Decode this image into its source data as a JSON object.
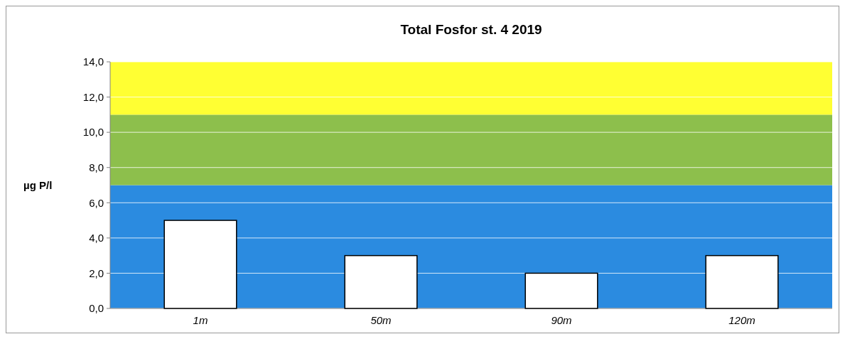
{
  "chart_data": {
    "type": "bar",
    "title": "Total Fosfor st. 4 2019",
    "ylabel": "µg P/l",
    "categories": [
      "1m",
      "50m",
      "90m",
      "120m"
    ],
    "values": [
      5,
      3,
      2,
      3
    ],
    "color": "#ffffff",
    "ylim": [
      0,
      14
    ],
    "yticks": [
      {
        "value": 0,
        "label": "0,0"
      },
      {
        "value": 2,
        "label": "2,0"
      },
      {
        "value": 4,
        "label": "4,0"
      },
      {
        "value": 6,
        "label": "6,0"
      },
      {
        "value": 8,
        "label": "8,0"
      },
      {
        "value": 10,
        "label": "10,0"
      },
      {
        "value": 12,
        "label": "12,0"
      },
      {
        "value": 14,
        "label": "14,0"
      }
    ],
    "grid": "y",
    "bands": [
      {
        "axis": "y",
        "from": 0,
        "to": 7,
        "color": "#2b8be0"
      },
      {
        "axis": "y",
        "from": 7,
        "to": 11,
        "color": "#8dbf4c"
      },
      {
        "axis": "y",
        "from": 11,
        "to": 14,
        "color": "#ffff33"
      }
    ]
  }
}
